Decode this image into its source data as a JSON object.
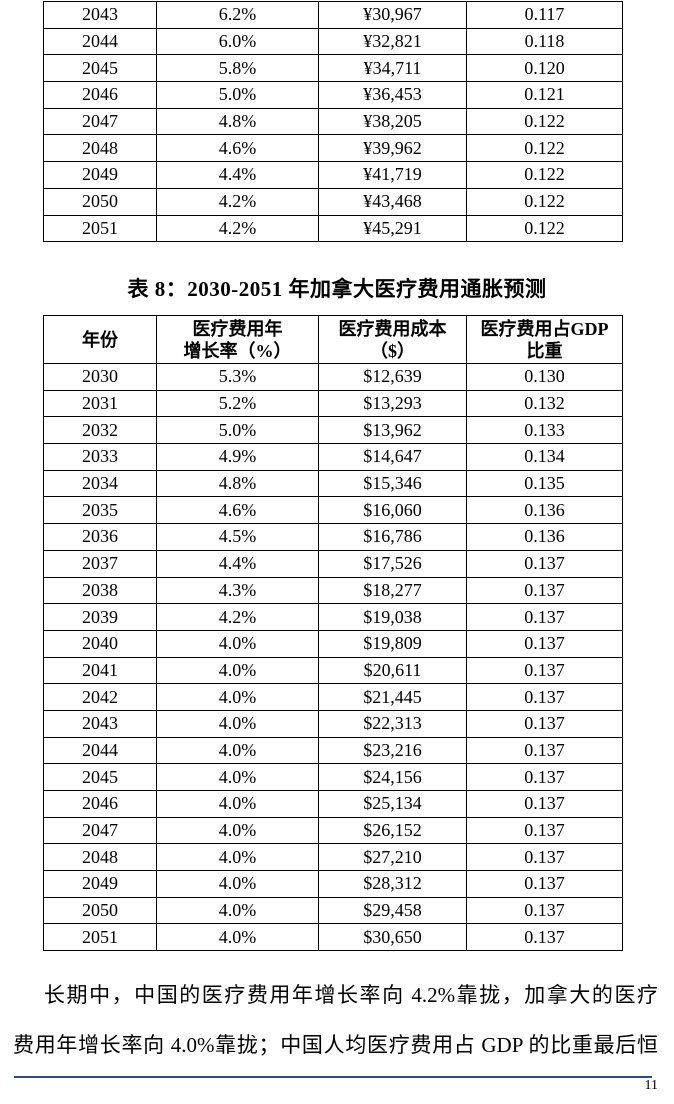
{
  "page": {
    "number": "11",
    "footer_rule_color": "#2b4d8c",
    "text_color": "#000000",
    "background_color": "#ffffff"
  },
  "tables": {
    "china_partial": {
      "description_note": "partial table cut off at top of page",
      "columns": [],
      "rows": [
        [
          "2043",
          "6.2%",
          "¥30,967",
          "0.117"
        ],
        [
          "2044",
          "6.0%",
          "¥32,821",
          "0.118"
        ],
        [
          "2045",
          "5.8%",
          "¥34,711",
          "0.120"
        ],
        [
          "2046",
          "5.0%",
          "¥36,453",
          "0.121"
        ],
        [
          "2047",
          "4.8%",
          "¥38,205",
          "0.122"
        ],
        [
          "2048",
          "4.6%",
          "¥39,962",
          "0.122"
        ],
        [
          "2049",
          "4.4%",
          "¥41,719",
          "0.122"
        ],
        [
          "2050",
          "4.2%",
          "¥43,468",
          "0.122"
        ],
        [
          "2051",
          "4.2%",
          "¥45,291",
          "0.122"
        ]
      ]
    },
    "canada": {
      "title": "表 8：2030-2051 年加拿大医疗费用通胀预测",
      "columns": [
        "年份",
        "医疗费用年\n增长率（%）",
        "医疗费用成本\n（$）",
        "医疗费用占GDP\n比重"
      ],
      "rows": [
        [
          "2030",
          "5.3%",
          "$12,639",
          "0.130"
        ],
        [
          "2031",
          "5.2%",
          "$13,293",
          "0.132"
        ],
        [
          "2032",
          "5.0%",
          "$13,962",
          "0.133"
        ],
        [
          "2033",
          "4.9%",
          "$14,647",
          "0.134"
        ],
        [
          "2034",
          "4.8%",
          "$15,346",
          "0.135"
        ],
        [
          "2035",
          "4.6%",
          "$16,060",
          "0.136"
        ],
        [
          "2036",
          "4.5%",
          "$16,786",
          "0.136"
        ],
        [
          "2037",
          "4.4%",
          "$17,526",
          "0.137"
        ],
        [
          "2038",
          "4.3%",
          "$18,277",
          "0.137"
        ],
        [
          "2039",
          "4.2%",
          "$19,038",
          "0.137"
        ],
        [
          "2040",
          "4.0%",
          "$19,809",
          "0.137"
        ],
        [
          "2041",
          "4.0%",
          "$20,611",
          "0.137"
        ],
        [
          "2042",
          "4.0%",
          "$21,445",
          "0.137"
        ],
        [
          "2043",
          "4.0%",
          "$22,313",
          "0.137"
        ],
        [
          "2044",
          "4.0%",
          "$23,216",
          "0.137"
        ],
        [
          "2045",
          "4.0%",
          "$24,156",
          "0.137"
        ],
        [
          "2046",
          "4.0%",
          "$25,134",
          "0.137"
        ],
        [
          "2047",
          "4.0%",
          "$26,152",
          "0.137"
        ],
        [
          "2048",
          "4.0%",
          "$27,210",
          "0.137"
        ],
        [
          "2049",
          "4.0%",
          "$28,312",
          "0.137"
        ],
        [
          "2050",
          "4.0%",
          "$29,458",
          "0.137"
        ],
        [
          "2051",
          "4.0%",
          "$30,650",
          "0.137"
        ]
      ]
    }
  },
  "paragraph": {
    "lines": [
      "长期中，中国的医疗费用年增长率向 4.2%靠拢，加拿大的医疗",
      "费用年增长率向 4.0%靠拢；中国人均医疗费用占 GDP 的比重最后恒"
    ]
  }
}
